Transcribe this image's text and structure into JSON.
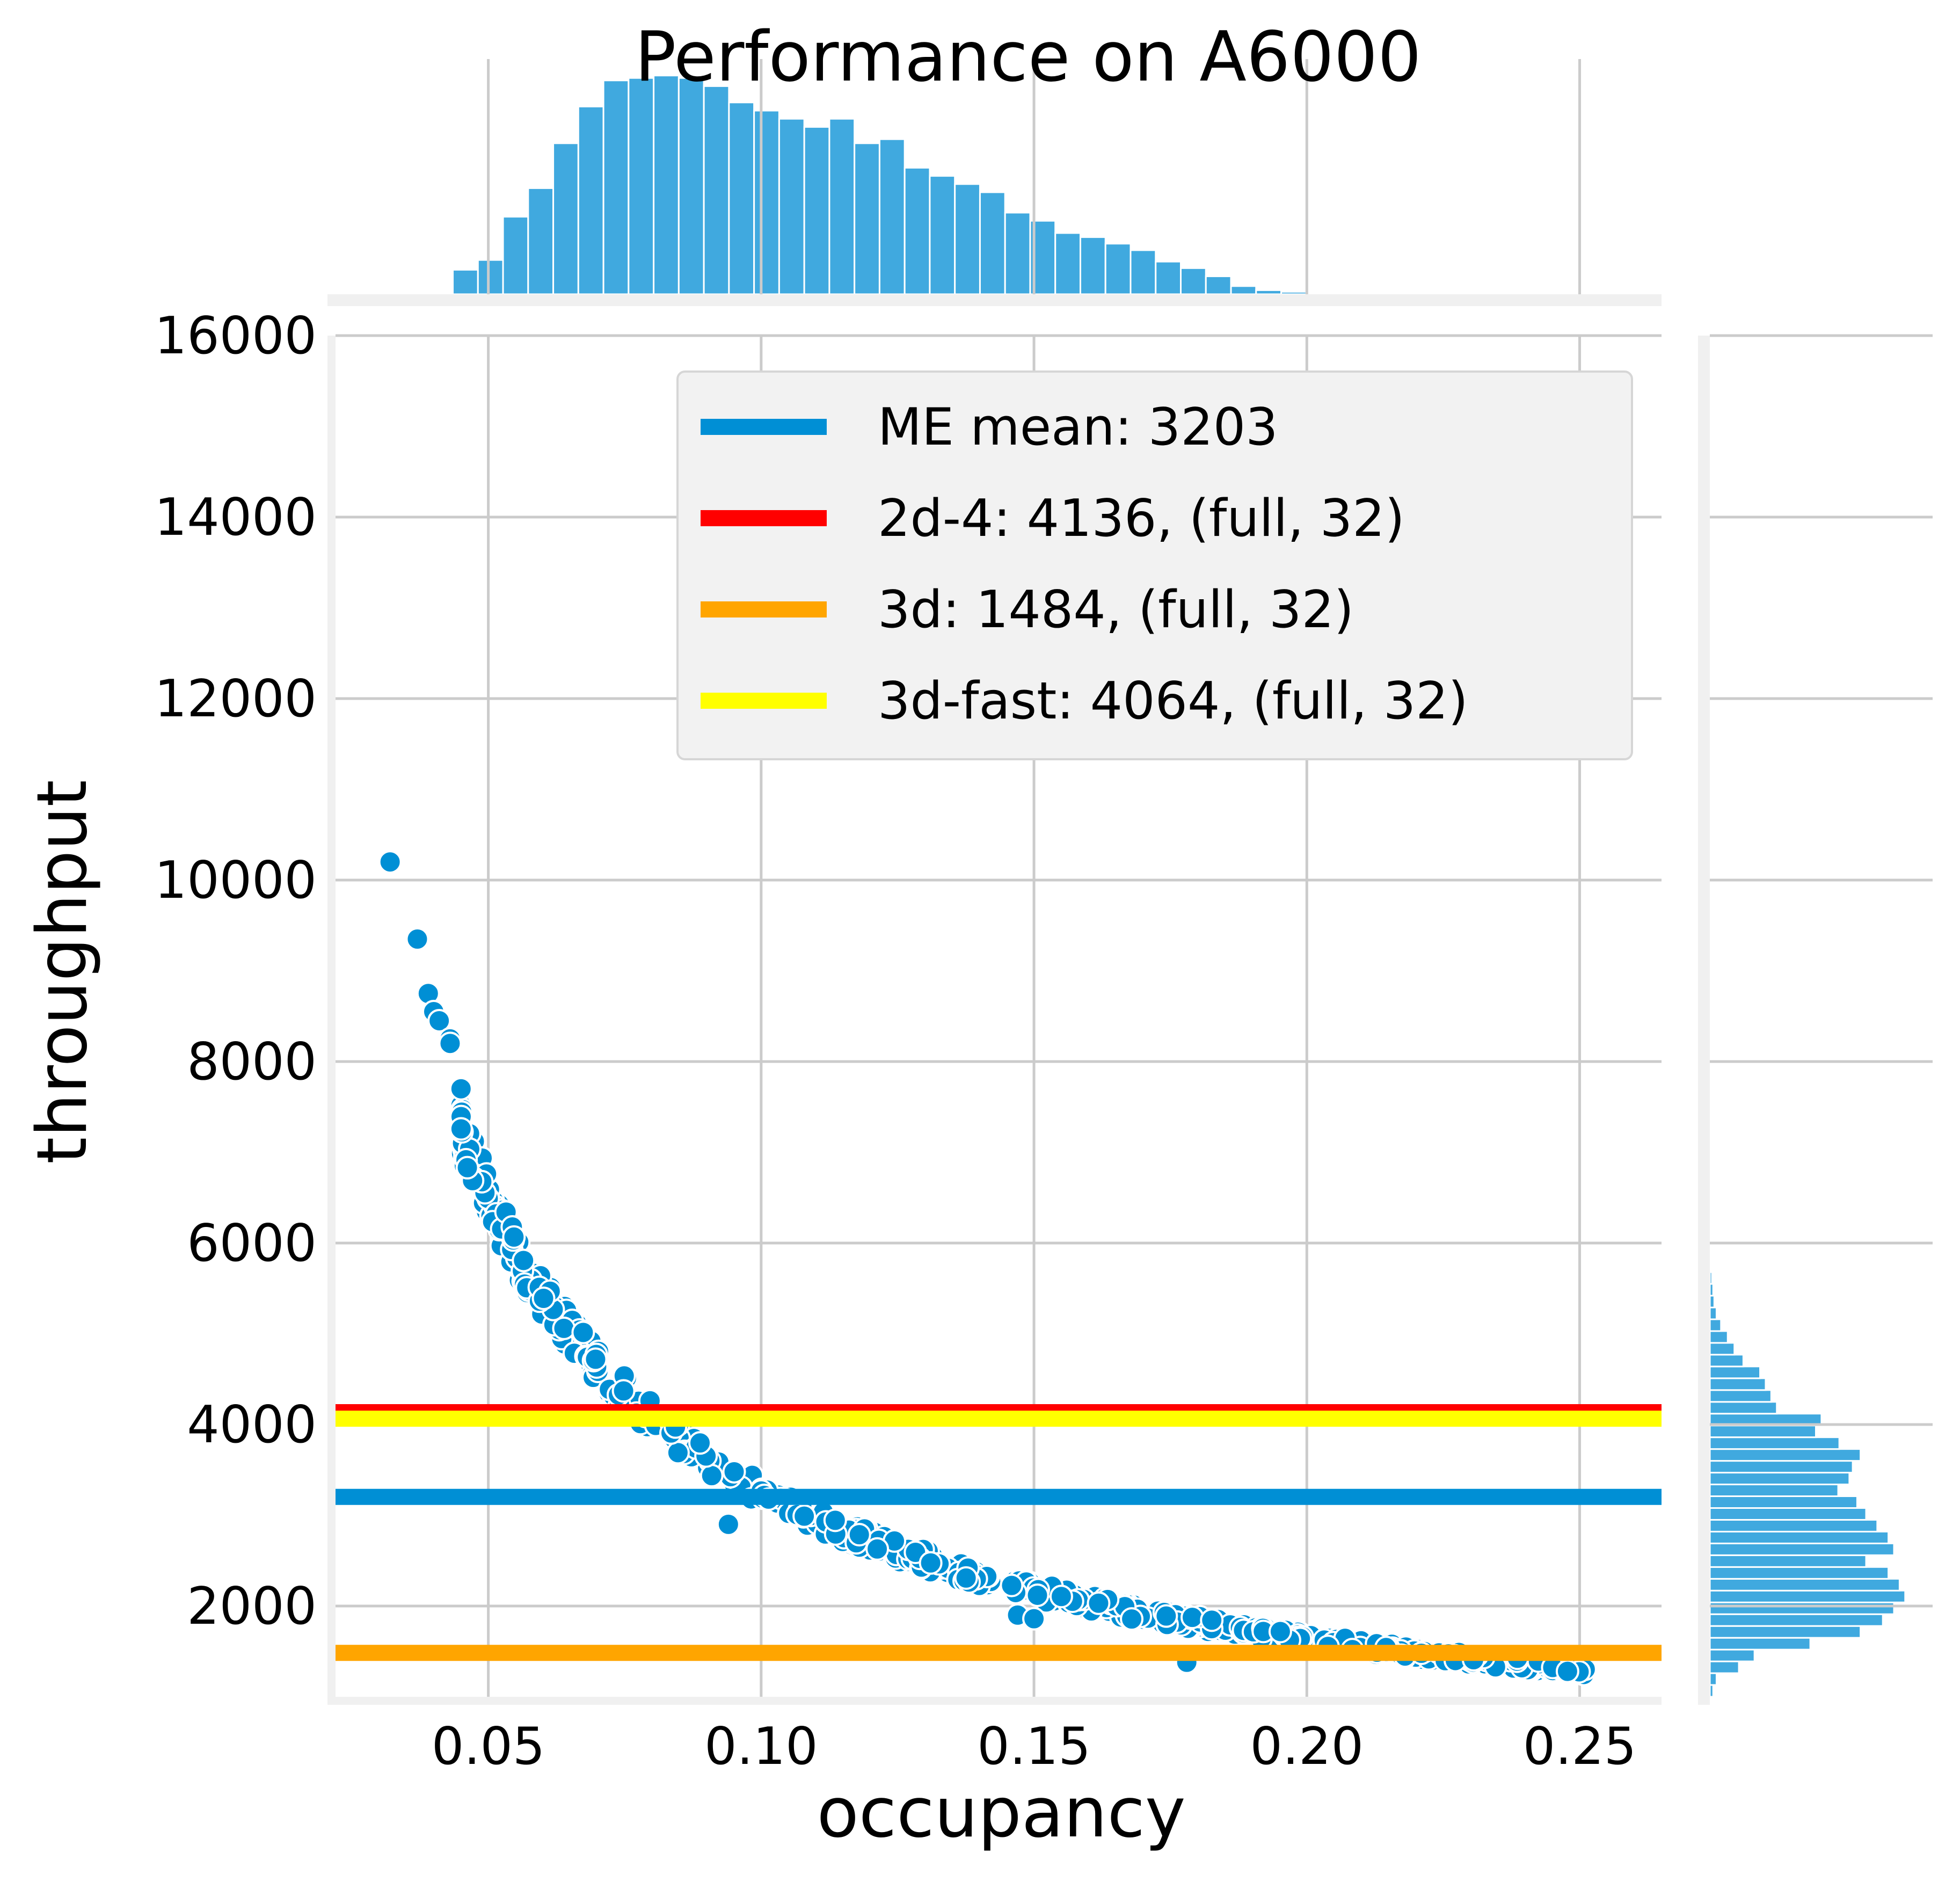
{
  "chart_data": {
    "type": "scatter",
    "title": "Performance on A6000",
    "xlabel": "occupancy",
    "ylabel": "throughput",
    "xlim": [
      0.022,
      0.265
    ],
    "ylim": [
      1000,
      16000
    ],
    "xticks": [
      0.05,
      0.1,
      0.15,
      0.2,
      0.25
    ],
    "xtick_labels": [
      "0.05",
      "0.10",
      "0.15",
      "0.20",
      "0.25"
    ],
    "yticks": [
      2000,
      4000,
      6000,
      8000,
      10000,
      12000,
      14000,
      16000
    ],
    "ytick_labels": [
      "2000",
      "4000",
      "6000",
      "8000",
      "10000",
      "12000",
      "14000",
      "16000"
    ],
    "grid": true,
    "legend_position": "top-right",
    "point_color": "#008fd5",
    "reference_lines": [
      {
        "label": "ME mean: 3203",
        "y": 3203,
        "color": "#008fd5"
      },
      {
        "label": "2d-4: 4136, (full, 32)",
        "y": 4136,
        "color": "#ff0000"
      },
      {
        "label": "3d: 1484, (full, 32)",
        "y": 1484,
        "color": "#ffa500"
      },
      {
        "label": "3d-fast: 4064, (full, 32)",
        "y": 4064,
        "color": "#ffff00"
      }
    ],
    "scatter_curve": {
      "formula": "throughput = k / occupancy",
      "k": 326
    },
    "scatter_outliers": [
      {
        "x": 0.032,
        "y": 10200
      },
      {
        "x": 0.037,
        "y": 9350
      },
      {
        "x": 0.039,
        "y": 8750
      },
      {
        "x": 0.04,
        "y": 8550
      },
      {
        "x": 0.041,
        "y": 8450
      },
      {
        "x": 0.043,
        "y": 8250
      },
      {
        "x": 0.043,
        "y": 8200
      },
      {
        "x": 0.045,
        "y": 7700
      },
      {
        "x": 0.094,
        "y": 2900
      },
      {
        "x": 0.147,
        "y": 1900
      },
      {
        "x": 0.15,
        "y": 1860
      },
      {
        "x": 0.178,
        "y": 1380
      }
    ],
    "top_histogram": {
      "bin_start": 0.0435,
      "bin_width": 0.0046,
      "counts": [
        30,
        42,
        95,
        130,
        185,
        230,
        262,
        265,
        268,
        265,
        255,
        235,
        225,
        215,
        205,
        215,
        185,
        190,
        155,
        145,
        135,
        125,
        100,
        90,
        75,
        70,
        62,
        54,
        40,
        32,
        22,
        10,
        5,
        3
      ]
    },
    "right_histogram": {
      "bin_start": 1000,
      "bin_width": 130,
      "counts": [
        3,
        6,
        26,
        40,
        90,
        135,
        155,
        165,
        175,
        170,
        160,
        140,
        165,
        160,
        150,
        140,
        132,
        115,
        125,
        128,
        135,
        116,
        95,
        100,
        60,
        55,
        50,
        45,
        30,
        22,
        16,
        10,
        6,
        4,
        3,
        2,
        1
      ]
    }
  }
}
